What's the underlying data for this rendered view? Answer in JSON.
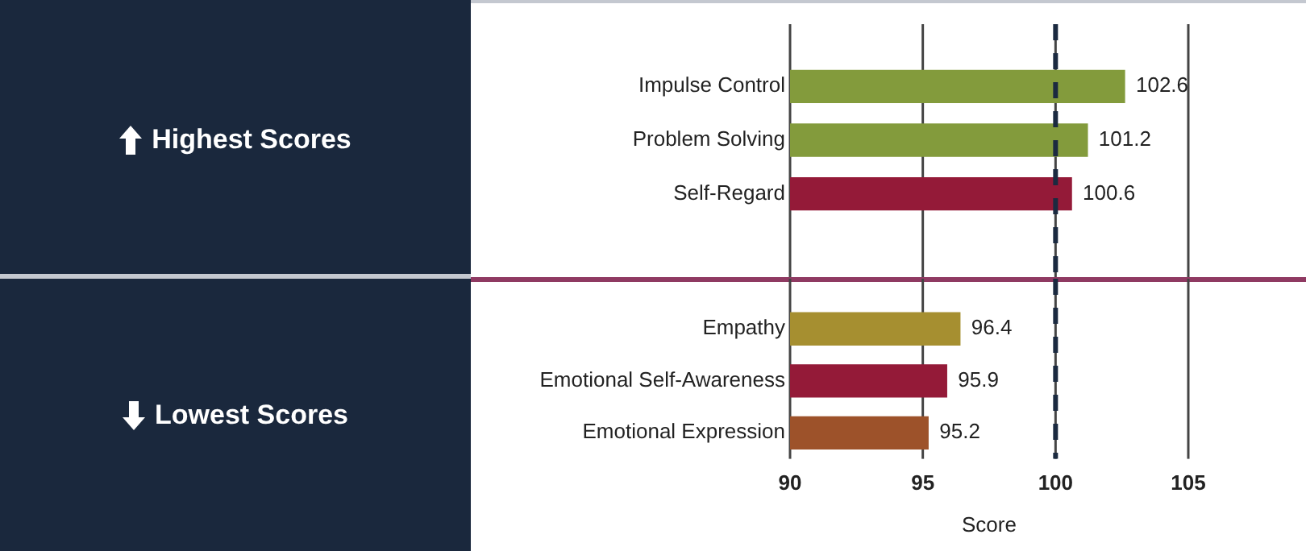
{
  "chart_data": [
    {
      "type": "bar",
      "orientation": "horizontal",
      "categories": [
        "Impulse Control",
        "Problem Solving",
        "Self-Regard"
      ],
      "values": [
        102.6,
        101.2,
        100.6
      ],
      "colors": [
        "#839b3c",
        "#839b3c",
        "#941a38"
      ],
      "xlim": [
        90,
        105
      ],
      "xticks": [
        90,
        95,
        100,
        105
      ],
      "tick_labels": "y",
      "grid": "x",
      "data_labels": true,
      "ref_lines": [
        {
          "axis": "x",
          "value": 100,
          "color": "#1b2a40",
          "line_style": "dashed"
        }
      ],
      "annotations": [
        "Highest Scores"
      ]
    },
    {
      "type": "bar",
      "orientation": "horizontal",
      "xlabel": "Score",
      "categories": [
        "Empathy",
        "Emotional Self-Awareness",
        "Emotional Expression"
      ],
      "values": [
        96.4,
        95.9,
        95.2
      ],
      "colors": [
        "#a68f30",
        "#941a38",
        "#9d522a"
      ],
      "xlim": [
        90,
        105
      ],
      "xticks": [
        90,
        95,
        100,
        105
      ],
      "grid": "x",
      "data_labels": true,
      "ref_lines": [
        {
          "axis": "x",
          "value": 100,
          "color": "#1b2a40",
          "line_style": "dashed"
        }
      ],
      "annotations": [
        "Lowest Scores"
      ]
    }
  ]
}
